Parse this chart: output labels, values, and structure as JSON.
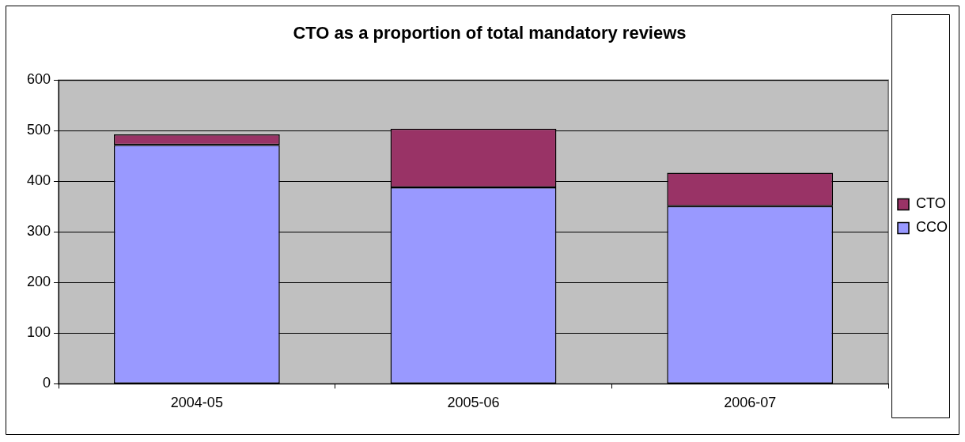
{
  "chart_data": {
    "type": "bar",
    "title": "CTO as a proportion of total mandatory reviews",
    "categories": [
      "2004-05",
      "2005-06",
      "2006-07"
    ],
    "stacked": true,
    "series": [
      {
        "name": "CCO",
        "color": "#9999ff",
        "values": [
          472,
          388,
          351
        ]
      },
      {
        "name": "CTO",
        "color": "#993366",
        "values": [
          21,
          116,
          66
        ]
      }
    ],
    "ylim": [
      0,
      600
    ],
    "yticks": [
      0,
      100,
      200,
      300,
      400,
      500,
      600
    ],
    "grid": "y",
    "legend": "right"
  }
}
